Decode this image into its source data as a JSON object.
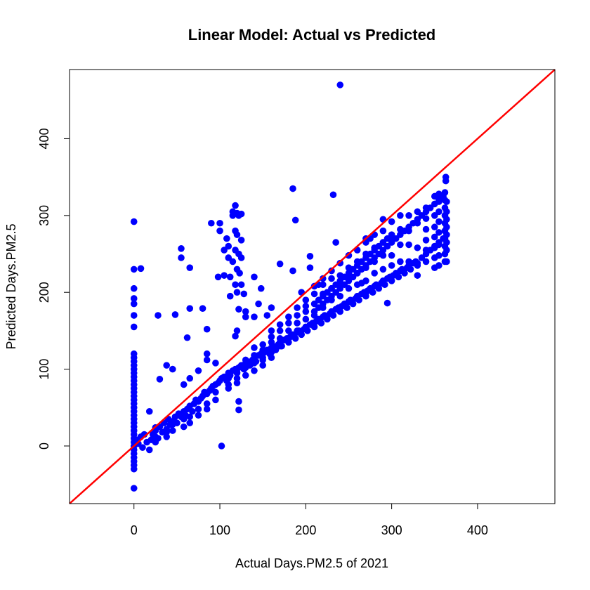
{
  "chart_data": {
    "type": "scatter",
    "title": "Linear Model: Actual vs Predicted",
    "xlabel": "Actual Days.PM2.5 of 2021",
    "ylabel": "Predicted Days.PM2.5",
    "xlim": [
      -75,
      490
    ],
    "ylim": [
      -75,
      490
    ],
    "xticks": [
      0,
      100,
      200,
      300,
      400
    ],
    "yticks": [
      0,
      100,
      200,
      300,
      400
    ],
    "grid": false,
    "legend": "none",
    "point_color": "#0000ff",
    "reference_line": {
      "type": "y=x",
      "color": "#ff0000"
    },
    "points": [
      [
        0,
        -55
      ],
      [
        0,
        -30
      ],
      [
        0,
        -25
      ],
      [
        0,
        -20
      ],
      [
        0,
        -15
      ],
      [
        0,
        -10
      ],
      [
        0,
        -5
      ],
      [
        0,
        0
      ],
      [
        0,
        5
      ],
      [
        0,
        10
      ],
      [
        0,
        15
      ],
      [
        0,
        20
      ],
      [
        0,
        25
      ],
      [
        0,
        30
      ],
      [
        0,
        35
      ],
      [
        0,
        40
      ],
      [
        0,
        45
      ],
      [
        0,
        50
      ],
      [
        0,
        55
      ],
      [
        0,
        60
      ],
      [
        0,
        65
      ],
      [
        0,
        70
      ],
      [
        0,
        75
      ],
      [
        0,
        80
      ],
      [
        0,
        85
      ],
      [
        0,
        90
      ],
      [
        0,
        95
      ],
      [
        0,
        100
      ],
      [
        0,
        105
      ],
      [
        0,
        110
      ],
      [
        0,
        115
      ],
      [
        0,
        120
      ],
      [
        0,
        155
      ],
      [
        0,
        170
      ],
      [
        0,
        185
      ],
      [
        0,
        192
      ],
      [
        0,
        205
      ],
      [
        0,
        230
      ],
      [
        0,
        292
      ],
      [
        8,
        231
      ],
      [
        28,
        170
      ],
      [
        48,
        171
      ],
      [
        55,
        257
      ],
      [
        55,
        245
      ],
      [
        65,
        232
      ],
      [
        65,
        179
      ],
      [
        80,
        179
      ],
      [
        62,
        141
      ],
      [
        85,
        152
      ],
      [
        102,
        0
      ],
      [
        30,
        87
      ],
      [
        18,
        45
      ],
      [
        122,
        47
      ],
      [
        122,
        58
      ],
      [
        120,
        150
      ],
      [
        118,
        143
      ],
      [
        130,
        168
      ],
      [
        140,
        168
      ],
      [
        155,
        170
      ],
      [
        160,
        150
      ],
      [
        90,
        290
      ],
      [
        100,
        280
      ],
      [
        100,
        290
      ],
      [
        105,
        255
      ],
      [
        108,
        270
      ],
      [
        110,
        245
      ],
      [
        112,
        220
      ],
      [
        115,
        300
      ],
      [
        118,
        313
      ],
      [
        120,
        303
      ],
      [
        122,
        300
      ],
      [
        125,
        302
      ],
      [
        115,
        305
      ],
      [
        118,
        280
      ],
      [
        120,
        275
      ],
      [
        125,
        268
      ],
      [
        110,
        260
      ],
      [
        118,
        255
      ],
      [
        122,
        250
      ],
      [
        125,
        245
      ],
      [
        115,
        240
      ],
      [
        120,
        230
      ],
      [
        123,
        225
      ],
      [
        118,
        210
      ],
      [
        112,
        195
      ],
      [
        122,
        178
      ],
      [
        128,
        198
      ],
      [
        130,
        175
      ],
      [
        98,
        220
      ],
      [
        105,
        222
      ],
      [
        120,
        200
      ],
      [
        125,
        210
      ],
      [
        140,
        220
      ],
      [
        148,
        205
      ],
      [
        145,
        185
      ],
      [
        160,
        180
      ],
      [
        170,
        237
      ],
      [
        185,
        335
      ],
      [
        188,
        294
      ],
      [
        185,
        228
      ],
      [
        205,
        247
      ],
      [
        205,
        232
      ],
      [
        215,
        210
      ],
      [
        195,
        200
      ],
      [
        232,
        327
      ],
      [
        235,
        265
      ],
      [
        240,
        470
      ],
      [
        265,
        212
      ],
      [
        270,
        199
      ],
      [
        295,
        186
      ],
      [
        270,
        270
      ],
      [
        275,
        270
      ],
      [
        290,
        295
      ],
      [
        3,
        8
      ],
      [
        5,
        3
      ],
      [
        8,
        12
      ],
      [
        10,
        -2
      ],
      [
        12,
        15
      ],
      [
        15,
        5
      ],
      [
        18,
        -5
      ],
      [
        20,
        8
      ],
      [
        22,
        15
      ],
      [
        25,
        20
      ],
      [
        28,
        10
      ],
      [
        30,
        25
      ],
      [
        33,
        18
      ],
      [
        35,
        30
      ],
      [
        38,
        22
      ],
      [
        40,
        35
      ],
      [
        42,
        28
      ],
      [
        45,
        32
      ],
      [
        48,
        38
      ],
      [
        50,
        30
      ],
      [
        52,
        42
      ],
      [
        55,
        38
      ],
      [
        58,
        45
      ],
      [
        60,
        40
      ],
      [
        62,
        48
      ],
      [
        65,
        52
      ],
      [
        68,
        45
      ],
      [
        70,
        55
      ],
      [
        72,
        60
      ],
      [
        75,
        58
      ],
      [
        78,
        62
      ],
      [
        80,
        65
      ],
      [
        82,
        70
      ],
      [
        85,
        68
      ],
      [
        88,
        72
      ],
      [
        90,
        75
      ],
      [
        92,
        78
      ],
      [
        95,
        80
      ],
      [
        98,
        82
      ],
      [
        100,
        85
      ],
      [
        102,
        88
      ],
      [
        105,
        90
      ],
      [
        108,
        85
      ],
      [
        110,
        95
      ],
      [
        112,
        92
      ],
      [
        115,
        98
      ],
      [
        118,
        100
      ],
      [
        120,
        95
      ],
      [
        122,
        102
      ],
      [
        125,
        105
      ],
      [
        128,
        100
      ],
      [
        130,
        108
      ],
      [
        132,
        110
      ],
      [
        135,
        105
      ],
      [
        138,
        112
      ],
      [
        140,
        115
      ],
      [
        142,
        110
      ],
      [
        145,
        118
      ],
      [
        148,
        120
      ],
      [
        150,
        115
      ],
      [
        152,
        122
      ],
      [
        155,
        125
      ],
      [
        158,
        120
      ],
      [
        160,
        128
      ],
      [
        162,
        130
      ],
      [
        165,
        125
      ],
      [
        168,
        132
      ],
      [
        170,
        135
      ],
      [
        172,
        130
      ],
      [
        175,
        138
      ],
      [
        178,
        140
      ],
      [
        180,
        135
      ],
      [
        182,
        142
      ],
      [
        185,
        145
      ],
      [
        188,
        140
      ],
      [
        190,
        148
      ],
      [
        192,
        150
      ],
      [
        195,
        145
      ],
      [
        198,
        152
      ],
      [
        200,
        155
      ],
      [
        202,
        150
      ],
      [
        205,
        158
      ],
      [
        208,
        160
      ],
      [
        210,
        155
      ],
      [
        212,
        162
      ],
      [
        215,
        165
      ],
      [
        218,
        160
      ],
      [
        220,
        168
      ],
      [
        222,
        170
      ],
      [
        225,
        165
      ],
      [
        228,
        172
      ],
      [
        230,
        175
      ],
      [
        232,
        170
      ],
      [
        235,
        178
      ],
      [
        238,
        180
      ],
      [
        240,
        175
      ],
      [
        242,
        182
      ],
      [
        245,
        185
      ],
      [
        248,
        180
      ],
      [
        250,
        188
      ],
      [
        252,
        190
      ],
      [
        255,
        185
      ],
      [
        258,
        192
      ],
      [
        260,
        195
      ],
      [
        262,
        190
      ],
      [
        265,
        198
      ],
      [
        268,
        200
      ],
      [
        270,
        195
      ],
      [
        272,
        202
      ],
      [
        275,
        205
      ],
      [
        278,
        200
      ],
      [
        280,
        208
      ],
      [
        282,
        210
      ],
      [
        285,
        205
      ],
      [
        288,
        212
      ],
      [
        290,
        215
      ],
      [
        292,
        210
      ],
      [
        295,
        218
      ],
      [
        298,
        220
      ],
      [
        300,
        215
      ],
      [
        302,
        222
      ],
      [
        305,
        225
      ],
      [
        308,
        220
      ],
      [
        310,
        228
      ],
      [
        312,
        230
      ],
      [
        315,
        225
      ],
      [
        318,
        232
      ],
      [
        320,
        235
      ],
      [
        322,
        230
      ],
      [
        325,
        238
      ],
      [
        328,
        240
      ],
      [
        330,
        235
      ],
      [
        335,
        245
      ],
      [
        340,
        250
      ],
      [
        345,
        255
      ],
      [
        350,
        260
      ],
      [
        355,
        265
      ],
      [
        360,
        270
      ],
      [
        215,
        180
      ],
      [
        220,
        185
      ],
      [
        225,
        190
      ],
      [
        230,
        195
      ],
      [
        235,
        200
      ],
      [
        240,
        205
      ],
      [
        245,
        210
      ],
      [
        250,
        215
      ],
      [
        255,
        220
      ],
      [
        260,
        225
      ],
      [
        265,
        230
      ],
      [
        270,
        235
      ],
      [
        275,
        240
      ],
      [
        280,
        245
      ],
      [
        285,
        250
      ],
      [
        290,
        255
      ],
      [
        295,
        260
      ],
      [
        300,
        265
      ],
      [
        305,
        270
      ],
      [
        310,
        275
      ],
      [
        315,
        280
      ],
      [
        320,
        285
      ],
      [
        325,
        290
      ],
      [
        330,
        295
      ],
      [
        335,
        300
      ],
      [
        340,
        305
      ],
      [
        345,
        310
      ],
      [
        350,
        315
      ],
      [
        355,
        320
      ],
      [
        360,
        325
      ],
      [
        210,
        175
      ],
      [
        215,
        190
      ],
      [
        220,
        195
      ],
      [
        225,
        200
      ],
      [
        230,
        205
      ],
      [
        235,
        210
      ],
      [
        240,
        215
      ],
      [
        245,
        220
      ],
      [
        250,
        225
      ],
      [
        255,
        230
      ],
      [
        260,
        235
      ],
      [
        265,
        240
      ],
      [
        270,
        245
      ],
      [
        275,
        250
      ],
      [
        280,
        255
      ],
      [
        285,
        260
      ],
      [
        290,
        265
      ],
      [
        295,
        270
      ],
      [
        300,
        275
      ],
      [
        362,
        240
      ],
      [
        362,
        250
      ],
      [
        362,
        260
      ],
      [
        362,
        270
      ],
      [
        362,
        280
      ],
      [
        362,
        290
      ],
      [
        362,
        300
      ],
      [
        362,
        310
      ],
      [
        362,
        320
      ],
      [
        362,
        330
      ],
      [
        363,
        345
      ],
      [
        363,
        350
      ],
      [
        364,
        240
      ],
      [
        364,
        255
      ],
      [
        364,
        265
      ],
      [
        364,
        275
      ],
      [
        364,
        285
      ],
      [
        364,
        295
      ],
      [
        364,
        305
      ],
      [
        364,
        318
      ],
      [
        355,
        235
      ],
      [
        355,
        248
      ],
      [
        355,
        262
      ],
      [
        355,
        278
      ],
      [
        355,
        292
      ],
      [
        355,
        305
      ],
      [
        355,
        318
      ],
      [
        355,
        328
      ],
      [
        350,
        232
      ],
      [
        350,
        245
      ],
      [
        350,
        258
      ],
      [
        350,
        272
      ],
      [
        350,
        285
      ],
      [
        350,
        300
      ],
      [
        350,
        325
      ],
      [
        340,
        240
      ],
      [
        340,
        255
      ],
      [
        340,
        268
      ],
      [
        340,
        282
      ],
      [
        340,
        296
      ],
      [
        340,
        310
      ],
      [
        330,
        222
      ],
      [
        330,
        238
      ],
      [
        330,
        258
      ],
      [
        330,
        290
      ],
      [
        330,
        305
      ],
      [
        320,
        240
      ],
      [
        320,
        262
      ],
      [
        320,
        280
      ],
      [
        320,
        300
      ],
      [
        310,
        240
      ],
      [
        310,
        262
      ],
      [
        310,
        282
      ],
      [
        310,
        300
      ],
      [
        300,
        235
      ],
      [
        300,
        248
      ],
      [
        300,
        270
      ],
      [
        300,
        292
      ],
      [
        290,
        230
      ],
      [
        290,
        248
      ],
      [
        290,
        265
      ],
      [
        290,
        280
      ],
      [
        280,
        225
      ],
      [
        280,
        240
      ],
      [
        280,
        258
      ],
      [
        280,
        275
      ],
      [
        270,
        215
      ],
      [
        270,
        232
      ],
      [
        270,
        250
      ],
      [
        270,
        265
      ],
      [
        260,
        210
      ],
      [
        260,
        225
      ],
      [
        260,
        240
      ],
      [
        260,
        255
      ],
      [
        250,
        205
      ],
      [
        250,
        220
      ],
      [
        250,
        232
      ],
      [
        250,
        248
      ],
      [
        240,
        195
      ],
      [
        240,
        210
      ],
      [
        240,
        222
      ],
      [
        240,
        238
      ],
      [
        230,
        190
      ],
      [
        230,
        205
      ],
      [
        230,
        218
      ],
      [
        230,
        228
      ],
      [
        220,
        180
      ],
      [
        220,
        198
      ],
      [
        220,
        210
      ],
      [
        220,
        218
      ],
      [
        210,
        170
      ],
      [
        210,
        185
      ],
      [
        210,
        198
      ],
      [
        210,
        208
      ],
      [
        200,
        165
      ],
      [
        200,
        175
      ],
      [
        200,
        182
      ],
      [
        200,
        190
      ],
      [
        190,
        150
      ],
      [
        190,
        160
      ],
      [
        190,
        170
      ],
      [
        190,
        180
      ],
      [
        180,
        140
      ],
      [
        180,
        150
      ],
      [
        180,
        160
      ],
      [
        180,
        168
      ],
      [
        170,
        130
      ],
      [
        170,
        140
      ],
      [
        170,
        150
      ],
      [
        170,
        158
      ],
      [
        160,
        115
      ],
      [
        160,
        122
      ],
      [
        160,
        135
      ],
      [
        160,
        142
      ],
      [
        150,
        105
      ],
      [
        150,
        112
      ],
      [
        150,
        125
      ],
      [
        150,
        132
      ],
      [
        140,
        98
      ],
      [
        140,
        108
      ],
      [
        140,
        118
      ],
      [
        140,
        128
      ],
      [
        130,
        92
      ],
      [
        130,
        102
      ],
      [
        130,
        112
      ],
      [
        120,
        82
      ],
      [
        120,
        88
      ],
      [
        120,
        96
      ],
      [
        110,
        75
      ],
      [
        110,
        80
      ],
      [
        110,
        88
      ],
      [
        95,
        60
      ],
      [
        95,
        70
      ],
      [
        95,
        108
      ],
      [
        85,
        48
      ],
      [
        85,
        55
      ],
      [
        85,
        112
      ],
      [
        85,
        120
      ],
      [
        75,
        40
      ],
      [
        75,
        48
      ],
      [
        75,
        98
      ],
      [
        65,
        30
      ],
      [
        65,
        38
      ],
      [
        65,
        88
      ],
      [
        58,
        25
      ],
      [
        58,
        35
      ],
      [
        58,
        80
      ],
      [
        45,
        20
      ],
      [
        45,
        28
      ],
      [
        45,
        100
      ],
      [
        38,
        12
      ],
      [
        38,
        18
      ],
      [
        38,
        105
      ],
      [
        25,
        5
      ],
      [
        25,
        12
      ],
      [
        25,
        24
      ]
    ]
  }
}
